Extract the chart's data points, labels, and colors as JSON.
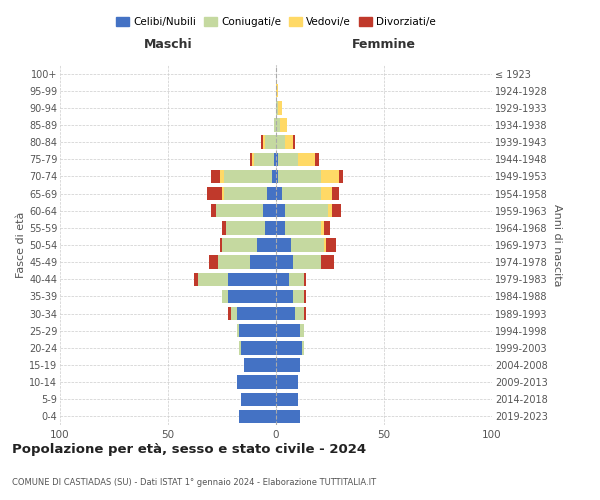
{
  "age_groups": [
    "0-4",
    "5-9",
    "10-14",
    "15-19",
    "20-24",
    "25-29",
    "30-34",
    "35-39",
    "40-44",
    "45-49",
    "50-54",
    "55-59",
    "60-64",
    "65-69",
    "70-74",
    "75-79",
    "80-84",
    "85-89",
    "90-94",
    "95-99",
    "100+"
  ],
  "birth_years": [
    "2019-2023",
    "2014-2018",
    "2009-2013",
    "2004-2008",
    "1999-2003",
    "1994-1998",
    "1989-1993",
    "1984-1988",
    "1979-1983",
    "1974-1978",
    "1969-1973",
    "1964-1968",
    "1959-1963",
    "1954-1958",
    "1949-1953",
    "1944-1948",
    "1939-1943",
    "1934-1938",
    "1929-1933",
    "1924-1928",
    "≤ 1923"
  ],
  "maschi": {
    "celibi": [
      17,
      16,
      18,
      15,
      16,
      17,
      18,
      22,
      22,
      12,
      9,
      5,
      6,
      4,
      2,
      1,
      0,
      0,
      0,
      0,
      0
    ],
    "coniugati": [
      0,
      0,
      0,
      0,
      1,
      1,
      3,
      3,
      14,
      15,
      16,
      18,
      22,
      20,
      22,
      9,
      5,
      1,
      0,
      0,
      0
    ],
    "vedovi": [
      0,
      0,
      0,
      0,
      0,
      0,
      0,
      0,
      0,
      0,
      0,
      0,
      0,
      1,
      2,
      1,
      1,
      0,
      0,
      0,
      0
    ],
    "divorziati": [
      0,
      0,
      0,
      0,
      0,
      0,
      1,
      0,
      2,
      4,
      1,
      2,
      2,
      7,
      4,
      1,
      1,
      0,
      0,
      0,
      0
    ]
  },
  "femmine": {
    "nubili": [
      11,
      10,
      10,
      11,
      12,
      11,
      9,
      8,
      6,
      8,
      7,
      4,
      4,
      3,
      1,
      1,
      0,
      0,
      0,
      0,
      0
    ],
    "coniugate": [
      0,
      0,
      0,
      0,
      1,
      2,
      4,
      5,
      7,
      13,
      15,
      17,
      20,
      18,
      20,
      9,
      4,
      2,
      1,
      0,
      0
    ],
    "vedove": [
      0,
      0,
      0,
      0,
      0,
      0,
      0,
      0,
      0,
      0,
      1,
      1,
      2,
      5,
      8,
      8,
      4,
      3,
      2,
      1,
      0
    ],
    "divorziate": [
      0,
      0,
      0,
      0,
      0,
      0,
      1,
      1,
      1,
      6,
      5,
      3,
      4,
      3,
      2,
      2,
      1,
      0,
      0,
      0,
      0
    ]
  },
  "colors": {
    "celibi": "#4472c4",
    "coniugati": "#c5d9a0",
    "vedovi": "#ffd966",
    "divorziati": "#c0392b"
  },
  "title": "Popolazione per età, sesso e stato civile - 2024",
  "subtitle": "COMUNE DI CASTIADAS (SU) - Dati ISTAT 1° gennaio 2024 - Elaborazione TUTTITALIA.IT",
  "xlabel_left": "Maschi",
  "xlabel_right": "Femmine",
  "ylabel_left": "Fasce di età",
  "ylabel_right": "Anni di nascita",
  "xlim": 100,
  "legend_labels": [
    "Celibi/Nubili",
    "Coniugati/e",
    "Vedovi/e",
    "Divorziati/e"
  ],
  "background_color": "#ffffff",
  "bar_height": 0.78
}
